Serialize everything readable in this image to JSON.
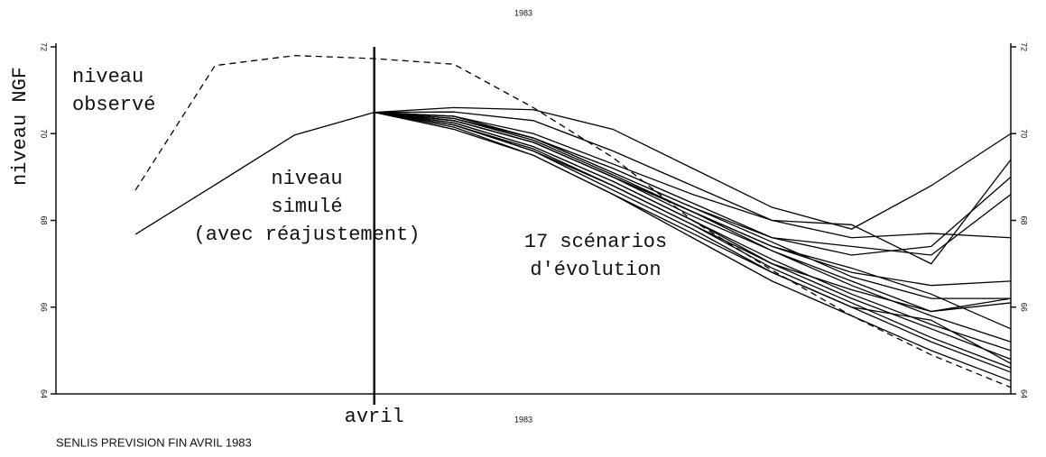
{
  "chart_data": {
    "type": "line",
    "title": "1983",
    "x_label": "1983",
    "y_label": "niveau NGF",
    "caption": "SENLIS PREVISION FIN AVRIL 1983",
    "categories": [
      null,
      null,
      null,
      null,
      "avril",
      null,
      null,
      null,
      null,
      null,
      null,
      null,
      null
    ],
    "ylim": [
      64,
      72
    ],
    "yticks": [
      64,
      66,
      68,
      70,
      72
    ],
    "annotations": [
      {
        "lines": [
          "niveau",
          "observé"
        ]
      },
      {
        "lines": [
          "niveau",
          "simulé",
          "(avec réajustement)"
        ]
      },
      {
        "lines": [
          "17 scénarios",
          "d'évolution"
        ]
      }
    ],
    "series": [
      {
        "color": "#000000",
        "dash": true,
        "values": [
          null,
          68.7,
          71.57,
          71.8,
          71.73,
          71.6,
          70.6,
          69.45,
          68.0,
          66.85,
          65.8,
          64.9,
          64.15
        ]
      },
      {
        "color": "#000000",
        "values": [
          null,
          67.68,
          68.82,
          69.97,
          70.49,
          null,
          null,
          null,
          null,
          null,
          null,
          null,
          null
        ]
      },
      {
        "color": "#000000",
        "values": [
          null,
          null,
          null,
          null,
          70.49,
          70.6,
          70.55,
          70.1,
          69.2,
          68.3,
          67.8,
          68.8,
          70.0
        ]
      },
      {
        "color": "#000000",
        "values": [
          null,
          null,
          null,
          null,
          70.49,
          70.5,
          70.3,
          69.6,
          68.8,
          68.0,
          67.6,
          67.7,
          67.6
        ]
      },
      {
        "color": "#000000",
        "values": [
          null,
          null,
          null,
          null,
          70.49,
          70.4,
          70.0,
          69.3,
          68.6,
          68.0,
          67.9,
          67.0,
          69.4
        ]
      },
      {
        "color": "#000000",
        "values": [
          null,
          null,
          null,
          null,
          70.49,
          70.4,
          69.9,
          69.2,
          68.4,
          67.6,
          67.4,
          67.2,
          68.6
        ]
      },
      {
        "color": "#000000",
        "values": [
          null,
          null,
          null,
          null,
          70.49,
          70.35,
          69.9,
          69.1,
          68.3,
          67.5,
          66.7,
          66.2,
          66.2
        ]
      },
      {
        "color": "#000000",
        "values": [
          null,
          null,
          null,
          null,
          70.49,
          70.3,
          69.8,
          69.0,
          68.1,
          67.3,
          66.6,
          65.9,
          66.1
        ]
      },
      {
        "color": "#000000",
        "values": [
          null,
          null,
          null,
          null,
          70.49,
          70.3,
          69.8,
          69.0,
          68.2,
          67.3,
          66.5,
          65.8,
          65.2
        ]
      },
      {
        "color": "#000000",
        "values": [
          null,
          null,
          null,
          null,
          70.49,
          70.25,
          69.7,
          68.9,
          68.0,
          67.1,
          66.3,
          65.6,
          65.0
        ]
      },
      {
        "color": "#000000",
        "values": [
          null,
          null,
          null,
          null,
          70.49,
          70.25,
          69.7,
          68.9,
          68.0,
          67.0,
          66.2,
          65.5,
          64.8
        ]
      },
      {
        "color": "#000000",
        "values": [
          null,
          null,
          null,
          null,
          70.49,
          70.2,
          69.6,
          68.8,
          67.9,
          66.9,
          66.1,
          65.3,
          64.6
        ]
      },
      {
        "color": "#000000",
        "values": [
          null,
          null,
          null,
          null,
          70.49,
          70.2,
          69.6,
          68.7,
          67.8,
          66.8,
          66.0,
          65.7,
          64.7
        ]
      },
      {
        "color": "#000000",
        "values": [
          null,
          null,
          null,
          null,
          70.49,
          70.15,
          69.5,
          68.6,
          67.7,
          66.8,
          66.0,
          65.2,
          64.5
        ]
      },
      {
        "color": "#000000",
        "values": [
          null,
          null,
          null,
          null,
          70.49,
          70.4,
          69.9,
          69.1,
          68.3,
          67.6,
          67.2,
          67.4,
          69.0
        ]
      },
      {
        "color": "#000000",
        "values": [
          null,
          null,
          null,
          null,
          70.49,
          70.3,
          69.8,
          69.0,
          68.2,
          67.4,
          66.8,
          66.5,
          66.6
        ]
      },
      {
        "color": "#000000",
        "values": [
          null,
          null,
          null,
          null,
          70.49,
          70.35,
          69.85,
          69.05,
          68.2,
          67.4,
          66.9,
          66.3,
          65.5
        ]
      },
      {
        "color": "#000000",
        "values": [
          null,
          null,
          null,
          null,
          70.49,
          70.2,
          69.65,
          68.8,
          67.9,
          67.0,
          66.4,
          65.9,
          66.2
        ]
      },
      {
        "color": "#000000",
        "values": [
          null,
          null,
          null,
          null,
          70.49,
          70.1,
          69.5,
          68.6,
          67.6,
          66.6,
          65.8,
          65.0,
          64.3
        ]
      }
    ]
  }
}
